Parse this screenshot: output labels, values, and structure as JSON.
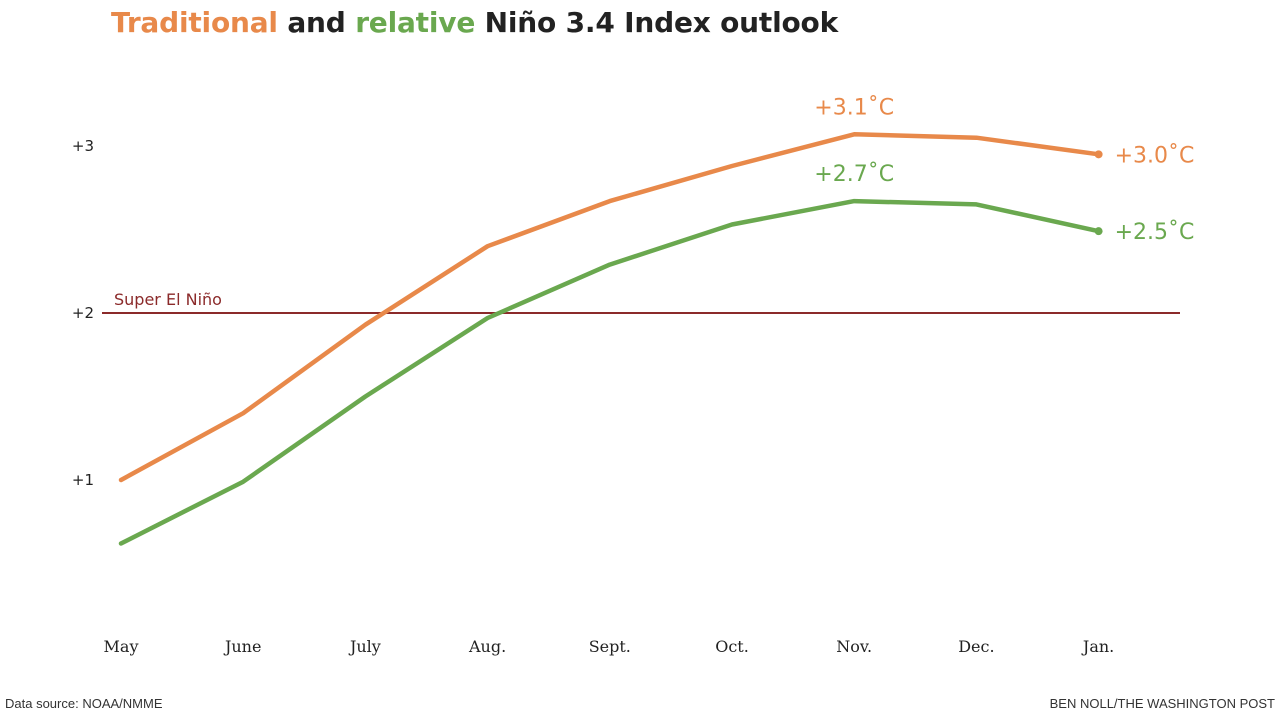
{
  "title": {
    "part1": "Traditional",
    "part2": " and ",
    "part3": "relative",
    "part4": " Niño 3.4 Index outlook"
  },
  "colors": {
    "traditional": "#e8894a",
    "relative": "#6aa84f",
    "reference": "#8b2a2a",
    "text": "#222222"
  },
  "chart_data": {
    "type": "line",
    "categories": [
      "May",
      "June",
      "July",
      "Aug.",
      "Sept.",
      "Oct.",
      "Nov.",
      "Dec.",
      "Jan."
    ],
    "series": [
      {
        "key": "traditional",
        "values": [
          1.0,
          1.4,
          1.93,
          2.4,
          2.67,
          2.88,
          3.07,
          3.05,
          2.95
        ],
        "end_label": "+3.0˚C",
        "peak_label": "+3.1˚C",
        "peak_index": 6
      },
      {
        "key": "relative",
        "values": [
          0.62,
          0.99,
          1.5,
          1.97,
          2.29,
          2.53,
          2.67,
          2.65,
          2.49
        ],
        "end_label": "+2.5˚C",
        "peak_label": "+2.7˚C",
        "peak_index": 6
      }
    ],
    "yticks": [
      {
        "value": 1,
        "label": "+1"
      },
      {
        "value": 2,
        "label": "+2"
      },
      {
        "value": 3,
        "label": "+3"
      }
    ],
    "reference_line": {
      "value": 2,
      "label": "Super El Niño"
    },
    "ylim": [
      0.4,
      3.3
    ],
    "grid": false,
    "legend": "title"
  },
  "footer": {
    "source": "Data source: NOAA/NMME",
    "credit": "BEN NOLL/THE WASHINGTON POST"
  }
}
